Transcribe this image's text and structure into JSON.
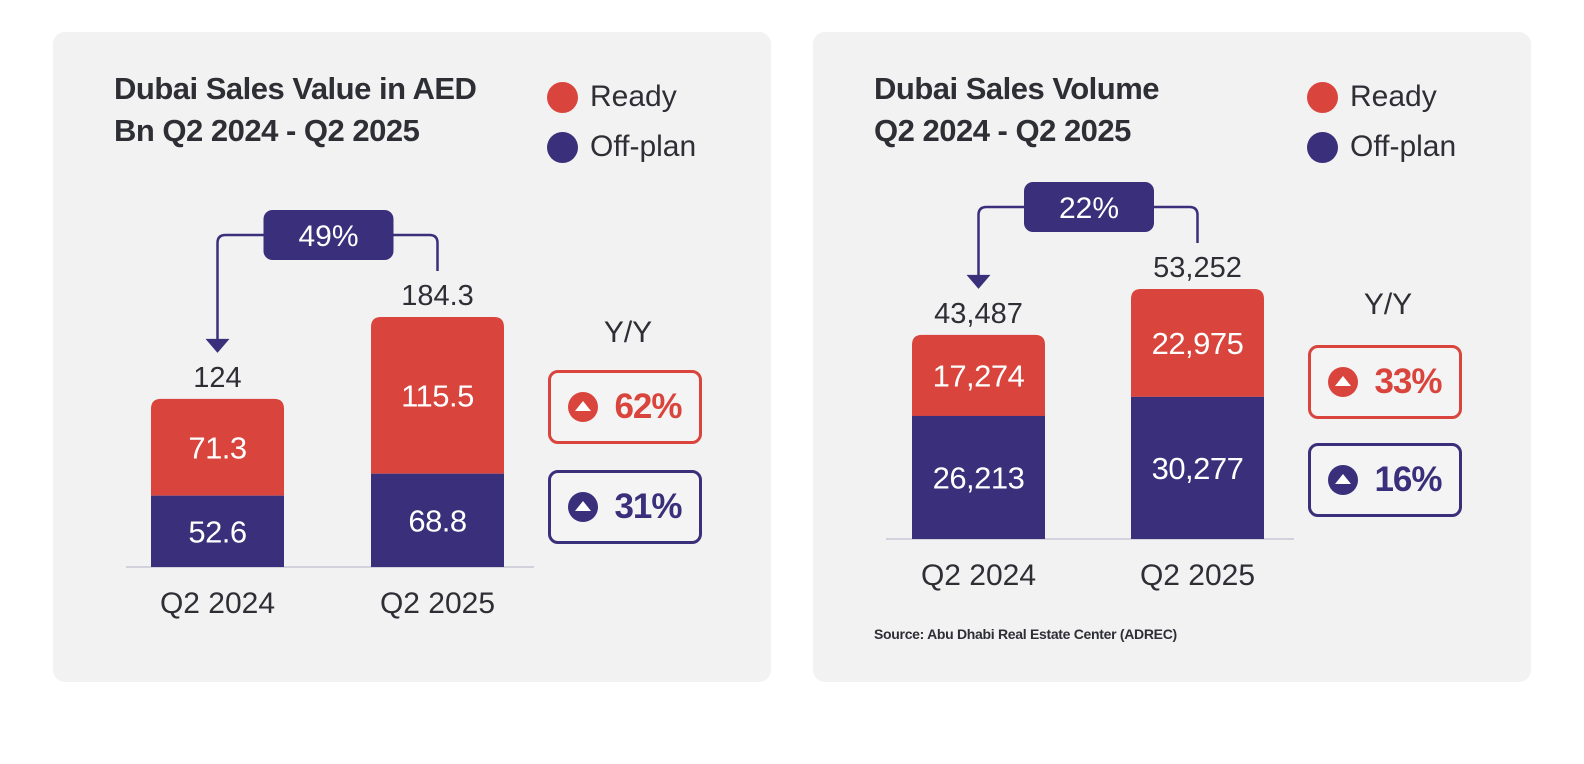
{
  "colors": {
    "ready": "#d9453c",
    "offplan": "#3a2f7a",
    "baseline": "#c8c8d4",
    "panel": "#f2f2f3"
  },
  "panels": [
    {
      "title_line1": "Dubai Sales Value in AED",
      "title_line2": "Bn Q2 2024 - Q2 2025",
      "legend": {
        "ready": "Ready",
        "offplan": "Off-plan"
      },
      "yy_label": "Y/Y",
      "yy_ready": "62%",
      "yy_offplan": "31%",
      "source": ""
    },
    {
      "title_line1": "Dubai Sales Volume",
      "title_line2": "Q2 2024 - Q2 2025",
      "legend": {
        "ready": "Ready",
        "offplan": "Off-plan"
      },
      "yy_label": "Y/Y",
      "yy_ready": "33%",
      "yy_offplan": "16%",
      "source": "Source: Abu Dhabi Real Estate Center (ADREC)"
    }
  ],
  "chart_data": [
    {
      "type": "bar",
      "stacked": true,
      "categories": [
        "Q2 2024",
        "Q2 2025"
      ],
      "series": [
        {
          "name": "Off-plan",
          "values": [
            52.6,
            68.8
          ],
          "labels": [
            "52.6",
            "68.8"
          ],
          "color": "#3a2f7a"
        },
        {
          "name": "Ready",
          "values": [
            71.3,
            115.5
          ],
          "labels": [
            "71.3",
            "115.5"
          ],
          "color": "#d9453c"
        }
      ],
      "totals": [
        124,
        184.3
      ],
      "total_labels": [
        "124",
        "184.3"
      ],
      "growth_label": "49%",
      "ylim": [
        0,
        184.3
      ]
    },
    {
      "type": "bar",
      "stacked": true,
      "categories": [
        "Q2 2024",
        "Q2 2025"
      ],
      "series": [
        {
          "name": "Off-plan",
          "values": [
            26213,
            30277
          ],
          "labels": [
            "26,213",
            "30,277"
          ],
          "color": "#3a2f7a"
        },
        {
          "name": "Ready",
          "values": [
            17274,
            22975
          ],
          "labels": [
            "17,274",
            "22,975"
          ],
          "color": "#d9453c"
        }
      ],
      "totals": [
        43487,
        53252
      ],
      "total_labels": [
        "43,487",
        "53,252"
      ],
      "growth_label": "22%",
      "ylim": [
        0,
        53252
      ]
    }
  ]
}
